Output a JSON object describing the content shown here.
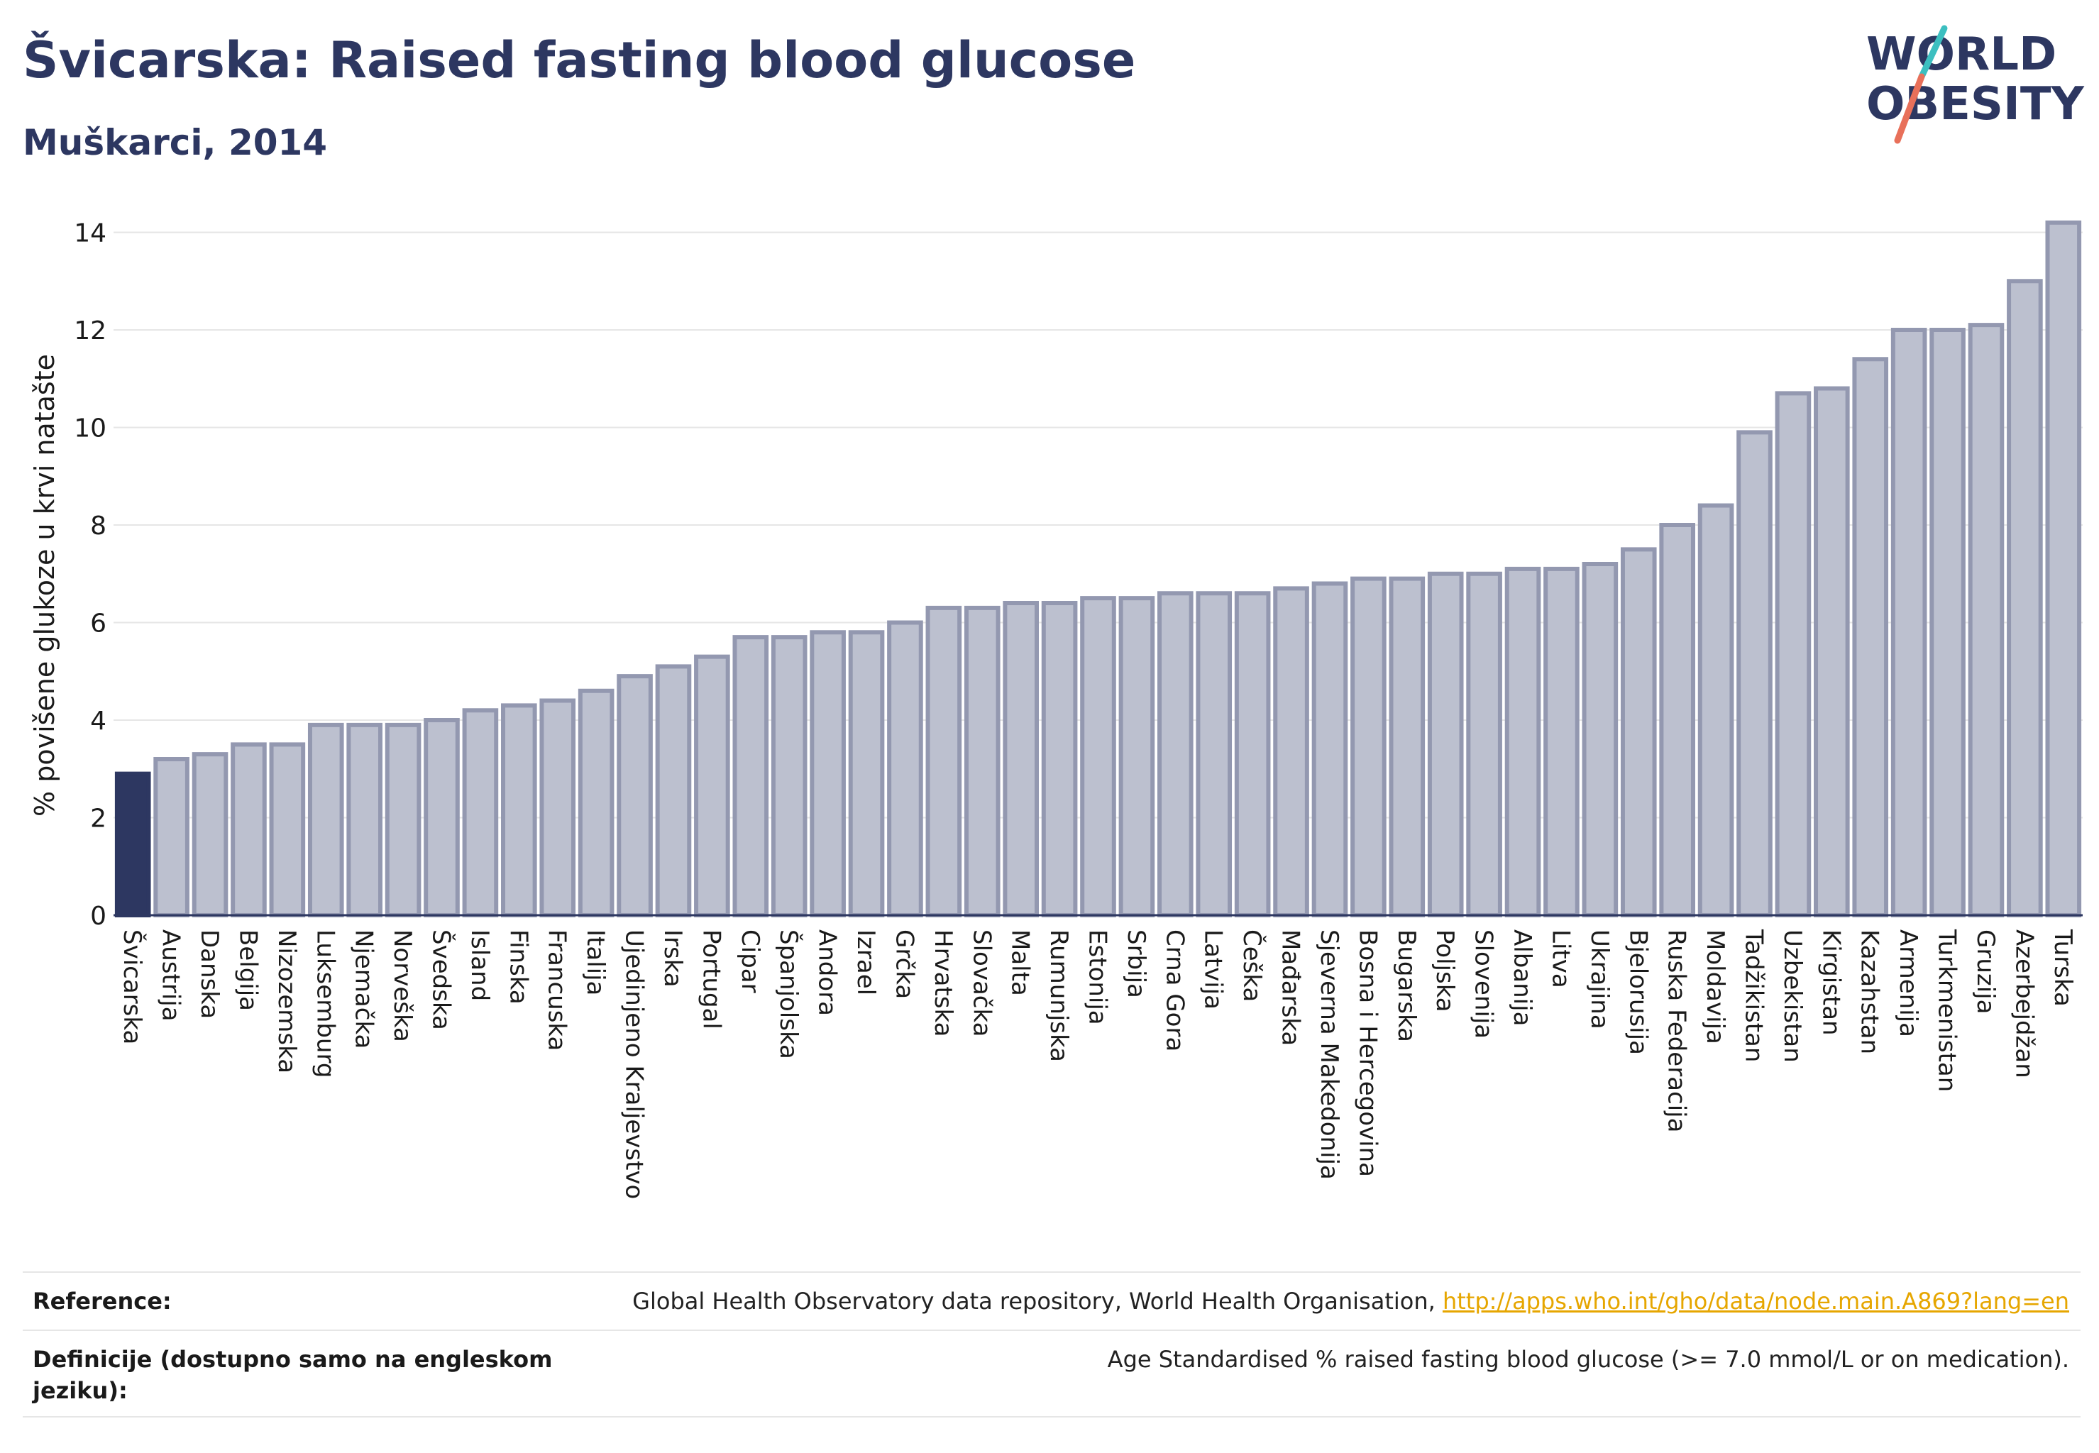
{
  "header": {
    "title": "Švicarska: Raised fasting blood glucose",
    "subtitle": "Muškarci, 2014"
  },
  "logo": {
    "line1": "WORLD",
    "line2": "OBESITY"
  },
  "colors": {
    "highlight": "#2d3761",
    "bar_fill": "#bcc0cf",
    "bar_stroke": "#9398b0",
    "grid": "#e6e6e6",
    "text": "#2d3761",
    "link": "#e6a600",
    "logo_teal": "#3cbfc0",
    "logo_red": "#e8705a"
  },
  "chart_data": {
    "type": "bar",
    "title": "",
    "xlabel": "",
    "ylabel": "% povišene glukoze u krvi natašte",
    "ylim": [
      0,
      14.4
    ],
    "yticks": [
      0,
      2,
      4,
      6,
      8,
      10,
      12,
      14
    ],
    "grid": true,
    "highlight_category": "Švicarska",
    "categories": [
      "Švicarska",
      "Austrija",
      "Danska",
      "Belgija",
      "Nizozemska",
      "Luksemburg",
      "Njemačka",
      "Norveška",
      "Švedska",
      "Island",
      "Finska",
      "Francuska",
      "Italija",
      "Ujedinjeno Kraljevstvo",
      "Irska",
      "Portugal",
      "Cipar",
      "Španjolska",
      "Andora",
      "Izrael",
      "Grčka",
      "Hrvatska",
      "Slovačka",
      "Malta",
      "Rumunjska",
      "Estonija",
      "Srbija",
      "Crna Gora",
      "Latvija",
      "Češka",
      "Mađarska",
      "Sjeverna Makedonija",
      "Bosna i Hercegovina",
      "Bugarska",
      "Poljska",
      "Slovenija",
      "Albanija",
      "Litva",
      "Ukrajina",
      "Bjelorusija",
      "Ruska Federacija",
      "Moldavija",
      "Tadžikistan",
      "Uzbekistan",
      "Kirgistan",
      "Kazahstan",
      "Armenija",
      "Turkmenistan",
      "Gruzija",
      "Azerbejdžan",
      "Turska"
    ],
    "values": [
      2.9,
      3.2,
      3.3,
      3.5,
      3.5,
      3.9,
      3.9,
      3.9,
      4.0,
      4.2,
      4.3,
      4.4,
      4.6,
      4.9,
      5.1,
      5.3,
      5.7,
      5.7,
      5.8,
      5.8,
      6.0,
      6.3,
      6.3,
      6.4,
      6.4,
      6.5,
      6.5,
      6.6,
      6.6,
      6.6,
      6.7,
      6.8,
      6.9,
      6.9,
      7.0,
      7.0,
      7.1,
      7.1,
      7.2,
      7.5,
      8.0,
      8.4,
      9.9,
      10.7,
      10.8,
      11.4,
      12.0,
      12.0,
      12.1,
      13.0,
      14.2
    ]
  },
  "references": [
    {
      "label": "Reference:",
      "value": "Global Health Observatory data repository, World Health Organisation, ",
      "link": "http://apps.who.int/gho/data/node.main.A869?lang=en"
    },
    {
      "label": "Definicije (dostupno samo na engleskom jeziku):",
      "value": "Age Standardised % raised fasting blood glucose (>= 7.0 mmol/L or on medication).",
      "link": ""
    }
  ]
}
